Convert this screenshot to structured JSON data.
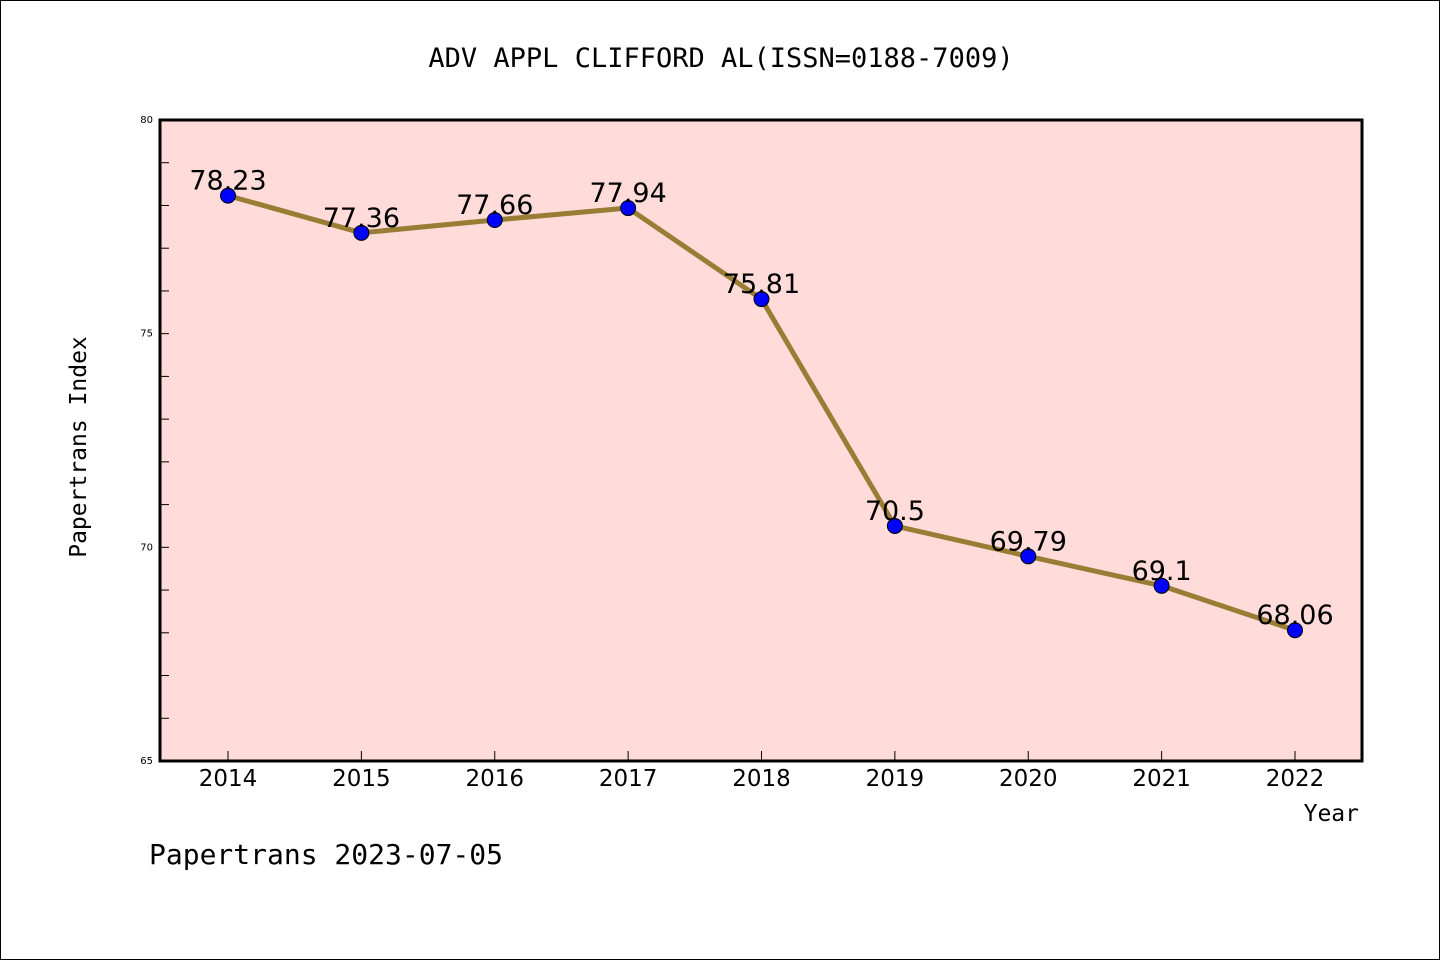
{
  "chart_data": {
    "type": "line",
    "title": "ADV APPL CLIFFORD AL(ISSN=0188-7009)",
    "xlabel": "Year",
    "ylabel": "Papertrans Index",
    "footer": "Papertrans 2023-07-05",
    "categories": [
      "2014",
      "2015",
      "2016",
      "2017",
      "2018",
      "2019",
      "2020",
      "2021",
      "2022"
    ],
    "values": [
      78.23,
      77.36,
      77.66,
      77.94,
      75.81,
      70.5,
      69.79,
      69.1,
      68.06
    ],
    "data_labels": [
      "78.23",
      "77.36",
      "77.66",
      "77.94",
      "75.81",
      "70.5",
      "69.79",
      "69.1",
      "68.06"
    ],
    "ylim": [
      65,
      80
    ],
    "y_ticks": [
      "65",
      "70",
      "75",
      "80"
    ],
    "y_minor_step": 1,
    "grid": false,
    "colors": {
      "plot_background": "#FFDCDA",
      "line": "#9A7D35",
      "marker": "#0000FF"
    }
  }
}
